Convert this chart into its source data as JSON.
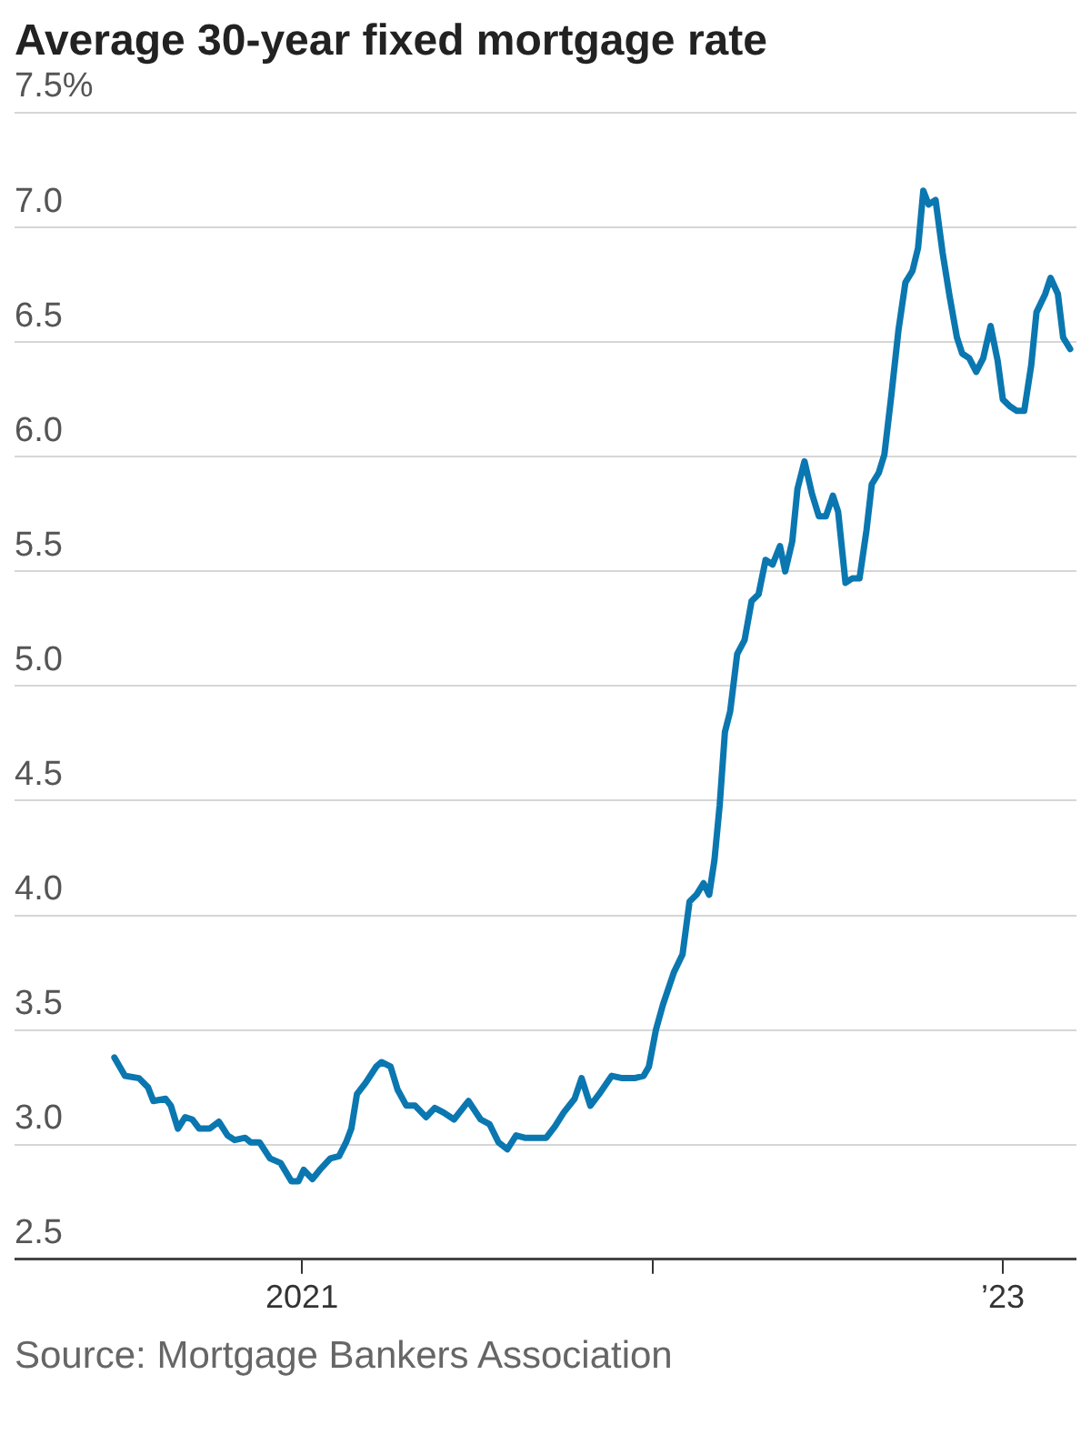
{
  "chart_data": {
    "type": "line",
    "title": "Average 30-year fixed mortgage rate",
    "annotations": [
      "Source: Mortgage Bankers Association"
    ],
    "x": [
      2020.465,
      2020.495,
      2020.535,
      2020.561,
      2020.576,
      2020.611,
      2020.626,
      2020.646,
      2020.667,
      2020.687,
      2020.707,
      2020.737,
      2020.763,
      2020.788,
      2020.808,
      2020.838,
      2020.854,
      2020.879,
      2020.909,
      2020.939,
      2020.97,
      2020.99,
      2021.005,
      2021.03,
      2021.051,
      2021.081,
      2021.106,
      2021.126,
      2021.141,
      2021.157,
      2021.182,
      2021.212,
      2021.227,
      2021.253,
      2021.273,
      2021.298,
      2021.323,
      2021.354,
      2021.379,
      2021.404,
      2021.434,
      2021.475,
      2021.51,
      2021.535,
      2021.561,
      2021.586,
      2021.611,
      2021.636,
      2021.672,
      2021.697,
      2021.722,
      2021.747,
      2021.778,
      2021.798,
      2021.823,
      2021.848,
      2021.884,
      2021.914,
      2021.949,
      2021.975,
      2021.99,
      2022.01,
      2022.03,
      2022.061,
      2022.086,
      2022.106,
      2022.126,
      2022.146,
      2022.162,
      2022.177,
      2022.192,
      2022.207,
      2022.222,
      2022.242,
      2022.263,
      2022.283,
      2022.303,
      2022.323,
      2022.343,
      2022.364,
      2022.379,
      2022.399,
      2022.414,
      2022.434,
      2022.455,
      2022.475,
      2022.495,
      2022.515,
      2022.53,
      2022.551,
      2022.571,
      2022.591,
      2022.611,
      2022.626,
      2022.646,
      2022.662,
      2022.682,
      2022.702,
      2022.722,
      2022.742,
      2022.758,
      2022.773,
      2022.788,
      2022.808,
      2022.828,
      2022.848,
      2022.869,
      2022.884,
      2022.904,
      2022.924,
      2022.944,
      2022.965,
      2022.985,
      2023.0,
      2023.02,
      2023.04,
      2023.061,
      2023.081,
      2023.096,
      2023.121,
      2023.136,
      2023.157,
      2023.172,
      2023.192
    ],
    "series": [
      {
        "color": "#0b77b0",
        "values": [
          3.38,
          3.3,
          3.29,
          3.25,
          3.19,
          3.2,
          3.17,
          3.07,
          3.12,
          3.11,
          3.07,
          3.07,
          3.1,
          3.04,
          3.02,
          3.03,
          3.01,
          3.01,
          2.94,
          2.92,
          2.84,
          2.84,
          2.89,
          2.85,
          2.89,
          2.94,
          2.95,
          3.01,
          3.07,
          3.22,
          3.27,
          3.34,
          3.36,
          3.34,
          3.24,
          3.17,
          3.17,
          3.12,
          3.16,
          3.14,
          3.11,
          3.19,
          3.11,
          3.09,
          3.01,
          2.98,
          3.04,
          3.03,
          3.03,
          3.03,
          3.08,
          3.14,
          3.2,
          3.29,
          3.17,
          3.22,
          3.3,
          3.29,
          3.29,
          3.3,
          3.34,
          3.5,
          3.61,
          3.75,
          3.83,
          4.06,
          4.09,
          4.14,
          4.09,
          4.24,
          4.48,
          4.8,
          4.89,
          5.14,
          5.2,
          5.37,
          5.4,
          5.55,
          5.53,
          5.61,
          5.5,
          5.63,
          5.86,
          5.98,
          5.84,
          5.74,
          5.74,
          5.83,
          5.76,
          5.45,
          5.47,
          5.47,
          5.68,
          5.88,
          5.93,
          6.01,
          6.27,
          6.55,
          6.76,
          6.81,
          6.91,
          7.16,
          7.1,
          7.12,
          6.89,
          6.7,
          6.52,
          6.45,
          6.43,
          6.37,
          6.43,
          6.57,
          6.42,
          6.25,
          6.22,
          6.2,
          6.2,
          6.4,
          6.63,
          6.71,
          6.78,
          6.71,
          6.52,
          6.47
        ]
      }
    ],
    "xlim": [
      2020.18,
      2023.21
    ],
    "xticks": [
      {
        "value": 2021,
        "label": "2021"
      },
      {
        "value": 2022,
        "label": null
      },
      {
        "value": 2023,
        "label": "’23"
      }
    ],
    "ylim": [
      2.5,
      7.5
    ],
    "yticks": [
      {
        "value": 2.5,
        "label": "2.5"
      },
      {
        "value": 3,
        "label": "3.0"
      },
      {
        "value": 3.5,
        "label": "3.5"
      },
      {
        "value": 4,
        "label": "4.0"
      },
      {
        "value": 4.5,
        "label": "4.5"
      },
      {
        "value": 5,
        "label": "5.0"
      },
      {
        "value": 5.5,
        "label": "5.5"
      },
      {
        "value": 6,
        "label": "6.0"
      },
      {
        "value": 6.5,
        "label": "6.5"
      },
      {
        "value": 7,
        "label": "7.0"
      },
      {
        "value": 7.5,
        "label": "7.5%"
      }
    ],
    "grid": "y",
    "legend": false,
    "marker": "none",
    "line_style": "solid"
  }
}
